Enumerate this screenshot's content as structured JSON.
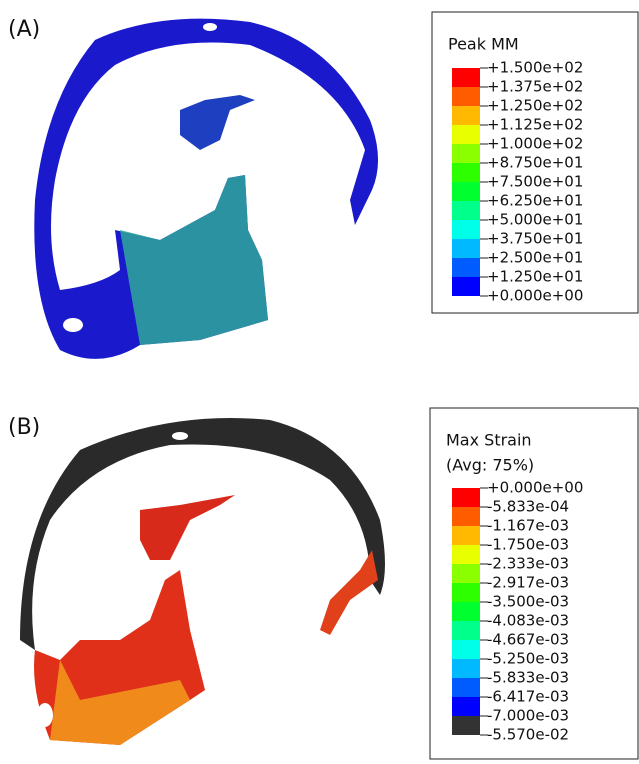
{
  "panels": [
    {
      "label": "(A)",
      "legend": {
        "title": [
          "Peak MM"
        ],
        "labels": [
          "+1.500e+02",
          "+1.375e+02",
          "+1.250e+02",
          "+1.125e+02",
          "+1.000e+02",
          "+8.750e+01",
          "+7.500e+01",
          "+6.250e+01",
          "+5.000e+01",
          "+3.750e+01",
          "+2.500e+01",
          "+1.250e+01",
          "+0.000e+00"
        ],
        "colors": [
          "#ff0000",
          "#ff5c00",
          "#ffb900",
          "#e8ff00",
          "#8bff00",
          "#2eff00",
          "#00ff2e",
          "#00ff8b",
          "#00ffe8",
          "#00b9ff",
          "#005cff",
          "#0000ff"
        ]
      }
    },
    {
      "label": "(B)",
      "legend": {
        "title": [
          "Max Strain",
          "(Avg: 75%)"
        ],
        "labels": [
          "+0.000e+00",
          "-5.833e-04",
          "-1.167e-03",
          "-1.750e-03",
          "-2.333e-03",
          "-2.917e-03",
          "-3.500e-03",
          "-4.083e-03",
          "-4.667e-03",
          "-5.250e-03",
          "-5.833e-03",
          "-6.417e-03",
          "-7.000e-03",
          "-5.570e-02"
        ],
        "colors": [
          "#ff0000",
          "#ff5c00",
          "#ffb900",
          "#e8ff00",
          "#8bff00",
          "#2eff00",
          "#00ff2e",
          "#00ff8b",
          "#00ffe8",
          "#00b9ff",
          "#005cff",
          "#0000ff",
          "#333333"
        ]
      }
    }
  ]
}
